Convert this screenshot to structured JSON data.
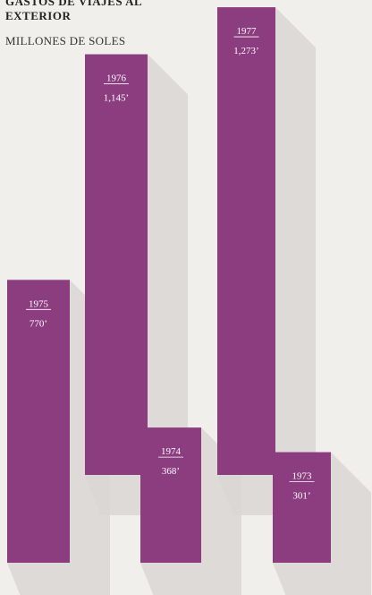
{
  "chart_data": {
    "type": "bar",
    "title": "GASTOS DE VIAJES AL EXTERIOR",
    "subtitle": "MILLONES DE SOLES",
    "categories": [
      "1975",
      "1976",
      "1974",
      "1977",
      "1973"
    ],
    "values": [
      770,
      1145,
      368,
      1273,
      301
    ],
    "value_labels": [
      "770’",
      "1,145’",
      "368’",
      "1,273’",
      "301’"
    ],
    "color": "#8c3d80"
  }
}
